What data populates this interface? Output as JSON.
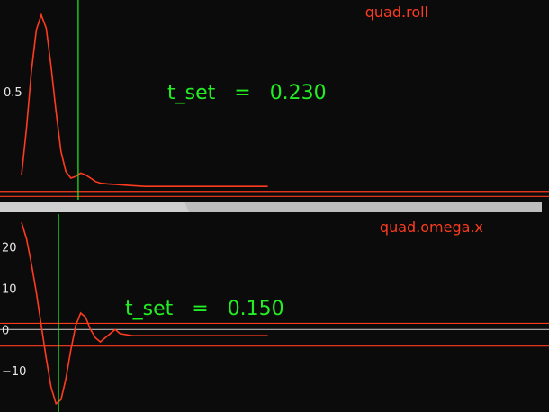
{
  "chart_data": [
    {
      "type": "line",
      "series": [
        {
          "name": "quad.roll",
          "x": [
            0.0,
            0.02,
            0.04,
            0.06,
            0.08,
            0.1,
            0.12,
            0.14,
            0.16,
            0.18,
            0.2,
            0.22,
            0.24,
            0.26,
            0.28,
            0.3,
            0.32,
            0.35,
            0.4,
            0.45,
            0.5,
            0.55,
            0.6,
            0.65,
            0.7,
            0.75,
            0.8,
            0.85,
            0.9,
            0.95,
            1.0
          ],
          "values": [
            0.0,
            0.28,
            0.62,
            0.87,
            0.96,
            0.88,
            0.65,
            0.38,
            0.14,
            0.02,
            -0.02,
            -0.01,
            0.01,
            0.0,
            -0.02,
            -0.04,
            -0.05,
            -0.055,
            -0.06,
            -0.065,
            -0.07,
            -0.07,
            -0.07,
            -0.07,
            -0.07,
            -0.07,
            -0.07,
            -0.07,
            -0.07,
            -0.07,
            -0.07
          ]
        }
      ],
      "y_ticks": [
        {
          "label": "0.5",
          "value": 0.5
        }
      ],
      "reference_lines": [
        -0.1,
        -0.13
      ],
      "ylim": [
        -0.15,
        1.05
      ],
      "xlim": [
        0,
        2.12
      ],
      "t_set_x": 0.23,
      "annotation": {
        "name": "t_set",
        "eq": "=",
        "value": "0.230"
      },
      "grid": false
    },
    {
      "type": "line",
      "series": [
        {
          "name": "quad.omega.x",
          "x": [
            0.0,
            0.02,
            0.04,
            0.06,
            0.08,
            0.1,
            0.12,
            0.14,
            0.16,
            0.18,
            0.2,
            0.22,
            0.24,
            0.26,
            0.28,
            0.3,
            0.32,
            0.34,
            0.36,
            0.38,
            0.4,
            0.45,
            0.5,
            0.55,
            0.6,
            0.65,
            0.7,
            0.75,
            0.8,
            0.85,
            0.9,
            0.95,
            1.0
          ],
          "values": [
            26,
            22,
            16,
            9,
            1,
            -7,
            -14,
            -18,
            -17,
            -12,
            -5,
            1,
            4,
            3,
            0,
            -2,
            -3,
            -2,
            -1,
            0,
            -1,
            -1.5,
            -1.5,
            -1.5,
            -1.5,
            -1.5,
            -1.5,
            -1.5,
            -1.5,
            -1.5,
            -1.5,
            -1.5,
            -1.5
          ]
        }
      ],
      "y_ticks": [
        {
          "label": "20",
          "value": 20
        },
        {
          "label": "10",
          "value": 10
        },
        {
          "label": "0",
          "value": 0
        },
        {
          "label": "−10",
          "value": -10
        }
      ],
      "reference_lines": [
        1.5,
        -4
      ],
      "zero_line": 0,
      "ylim": [
        -20,
        28
      ],
      "xlim": [
        0,
        2.12
      ],
      "t_set_x": 0.15,
      "annotation": {
        "name": "t_set",
        "eq": "=",
        "value": "0.150"
      },
      "grid": false
    }
  ],
  "colors": {
    "background": "#0b0b0b",
    "series": "#ff3b1f",
    "reference": "#ff3b1f",
    "settle_line": "#22ee22",
    "zero_line": "#bbbbbb",
    "divider": "#bdbdbd",
    "text": "#e8e8e8"
  }
}
